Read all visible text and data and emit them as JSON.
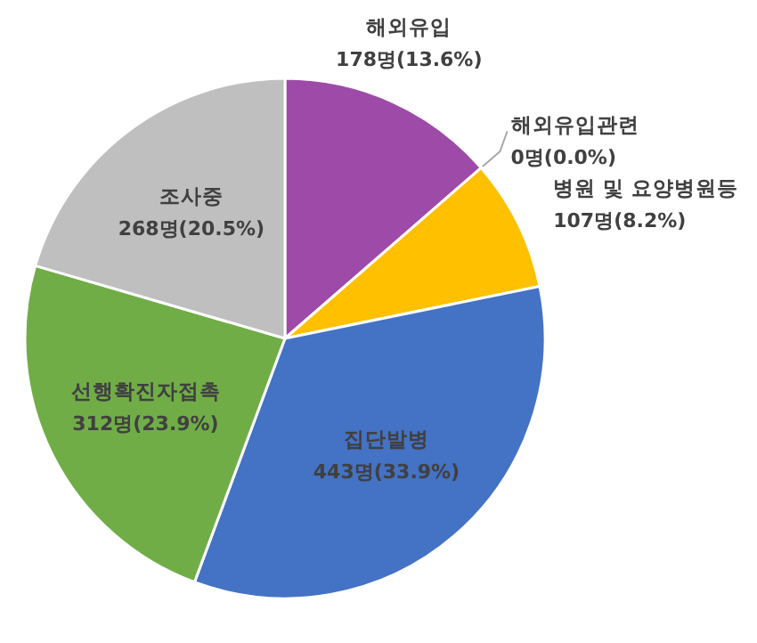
{
  "chart_data": {
    "type": "pie",
    "categories": [
      "해외유입",
      "해외유입관련",
      "병원 및 요양병원등",
      "집단발병",
      "선행확진자접촉",
      "조사중"
    ],
    "values": [
      178,
      0,
      107,
      443,
      312,
      268
    ],
    "colors": [
      "#9e4aa8",
      "#ed7d31",
      "#ffc000",
      "#4472c4",
      "#70ad47",
      "#bfbfbf"
    ],
    "value_labels": [
      "178명(13.6%)",
      "0명(0.0%)",
      "107명(8.2%)",
      "443명(33.9%)",
      "312명(23.9%)",
      "268명(20.5%)"
    ]
  }
}
